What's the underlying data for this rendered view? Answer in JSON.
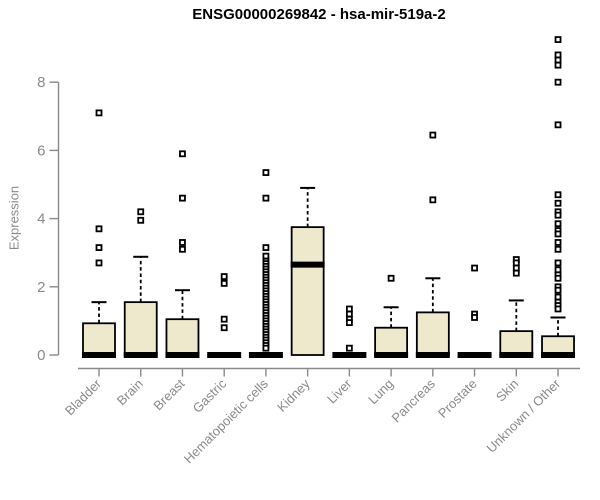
{
  "title": "ENSG00000269842 - hsa-mir-519a-2",
  "chart_data": {
    "type": "boxplot",
    "title": "ENSG00000269842 - hsa-mir-519a-2",
    "xlabel": "",
    "ylabel": "Expression",
    "yticks": [
      0,
      2,
      4,
      6,
      8
    ],
    "ylim": [
      0,
      9.5
    ],
    "grid": false,
    "categories": [
      "Bladder",
      "Brain",
      "Breast",
      "Gastric",
      "Hematopoietic cells",
      "Kidney",
      "Liver",
      "Lung",
      "Pancreas",
      "Prostate",
      "Skin",
      "Unknown / Other"
    ],
    "colors": {
      "box_fill": "#EEE8CD",
      "box_stroke": "#000000",
      "median": "#000000",
      "outlier_stroke": "#000000",
      "outlier_fill": "#ffffff",
      "axis": "#8a8a8a",
      "tick_label": "#8a8a8a",
      "title": "#000000",
      "background": "#ffffff"
    },
    "boxes": [
      {
        "category": "Bladder",
        "q1": 0,
        "median": 0,
        "q3": 0.93,
        "whisker_low": 0,
        "whisker_high": 1.55,
        "outliers": [
          7.1,
          3.7,
          3.15,
          2.7
        ]
      },
      {
        "category": "Brain",
        "q1": 0,
        "median": 0,
        "q3": 1.55,
        "whisker_low": 0,
        "whisker_high": 2.88,
        "outliers": [
          4.2,
          3.95
        ]
      },
      {
        "category": "Breast",
        "q1": 0,
        "median": 0,
        "q3": 1.05,
        "whisker_low": 0,
        "whisker_high": 1.9,
        "outliers": [
          5.9,
          4.6,
          3.3,
          3.1
        ]
      },
      {
        "category": "Gastric",
        "q1": 0,
        "median": 0,
        "q3": 0,
        "whisker_low": 0,
        "whisker_high": 0,
        "outliers": [
          2.3,
          2.1,
          1.05,
          0.8
        ]
      },
      {
        "category": "Hematopoietic cells",
        "q1": 0,
        "median": 0,
        "q3": 0,
        "whisker_low": 0,
        "whisker_high": 0,
        "outliers": [
          5.35,
          4.6,
          3.15,
          2.9,
          2.75,
          2.68,
          2.6,
          2.52,
          2.44,
          2.36,
          2.28,
          2.2,
          2.12,
          2.04,
          1.96,
          1.88,
          1.8,
          1.72,
          1.64,
          1.56,
          1.48,
          1.4,
          1.32,
          1.24,
          1.16,
          1.08,
          1.0,
          0.92,
          0.84,
          0.76,
          0.68,
          0.6,
          0.52,
          0.44,
          0.36,
          0.28,
          0.2
        ]
      },
      {
        "category": "Kidney",
        "q1": 0,
        "median": 2.65,
        "q3": 3.75,
        "whisker_low": 0,
        "whisker_high": 4.9,
        "outliers": []
      },
      {
        "category": "Liver",
        "q1": 0,
        "median": 0,
        "q3": 0,
        "whisker_low": 0,
        "whisker_high": 0,
        "outliers": [
          1.35,
          1.2,
          1.05,
          0.95,
          0.2
        ]
      },
      {
        "category": "Lung",
        "q1": 0,
        "median": 0,
        "q3": 0.8,
        "whisker_low": 0,
        "whisker_high": 1.4,
        "outliers": [
          2.25
        ]
      },
      {
        "category": "Pancreas",
        "q1": 0,
        "median": 0,
        "q3": 1.25,
        "whisker_low": 0,
        "whisker_high": 2.25,
        "outliers": [
          6.45,
          4.55
        ]
      },
      {
        "category": "Prostate",
        "q1": 0,
        "median": 0,
        "q3": 0,
        "whisker_low": 0,
        "whisker_high": 0,
        "outliers": [
          2.55,
          1.2,
          1.1
        ]
      },
      {
        "category": "Skin",
        "q1": 0,
        "median": 0,
        "q3": 0.7,
        "whisker_low": 0,
        "whisker_high": 1.6,
        "outliers": [
          2.8,
          2.7,
          2.55,
          2.4
        ]
      },
      {
        "category": "Unknown / Other",
        "q1": 0,
        "median": 0,
        "q3": 0.55,
        "whisker_low": 0,
        "whisker_high": 1.1,
        "outliers": [
          9.25,
          8.8,
          8.65,
          8.5,
          8.0,
          6.75,
          4.7,
          4.45,
          4.2,
          4.1,
          3.85,
          3.65,
          3.55,
          3.3,
          3.1,
          2.7,
          2.5,
          2.35,
          2.25,
          2.0,
          1.9,
          1.7,
          1.55,
          1.45,
          1.35
        ]
      }
    ]
  }
}
